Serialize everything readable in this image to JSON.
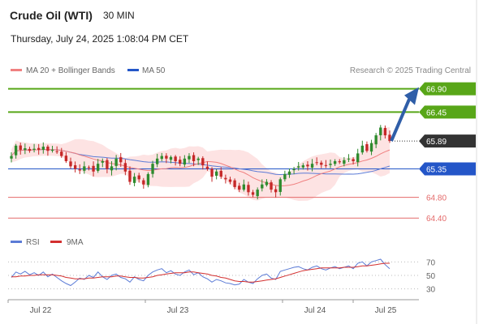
{
  "header": {
    "instrument": "Crude Oil (WTI)",
    "timeframe": "30 MIN",
    "datetime": "Thursday, July 24, 2025 1:08:04 PM CET"
  },
  "legend": {
    "ma20_label": "MA 20 + Bollinger Bands",
    "ma50_label": "MA 50",
    "credit": "Research © 2025 Trading Central"
  },
  "rsi_legend": {
    "rsi_label": "RSI",
    "ma9_label": "9MA"
  },
  "colors": {
    "resistance": "#58a618",
    "support": "#e46a6a",
    "pivot": "#2456c8",
    "last_price": "#333333",
    "candle_up": "#2e8b2e",
    "candle_down": "#c62828",
    "bollinger_fill": "#fde3e3",
    "ma20": "#f08080",
    "ma50": "#5b7bd6",
    "arrow": "#2f5ea8",
    "rsi": "#5b7bd6",
    "rsi_ma": "#d32f2f"
  },
  "chart_data": {
    "type": "candlestick",
    "ylim": [
      64.2,
      67.05
    ],
    "x_ticks": [
      "Jul 22",
      "Jul 23",
      "Jul 24",
      "Jul 25"
    ],
    "levels": [
      {
        "value": 66.9,
        "label": "66.90",
        "kind": "resistance"
      },
      {
        "value": 66.45,
        "label": "66.45",
        "kind": "resistance"
      },
      {
        "value": 65.89,
        "label": "65.89",
        "kind": "last"
      },
      {
        "value": 65.35,
        "label": "65.35",
        "kind": "pivot"
      },
      {
        "value": 64.8,
        "label": "64.80",
        "kind": "support"
      },
      {
        "value": 64.4,
        "label": "64.40",
        "kind": "support"
      }
    ],
    "close": [
      65.6,
      65.8,
      65.72,
      65.75,
      65.7,
      65.74,
      65.72,
      65.78,
      65.7,
      65.72,
      65.68,
      65.6,
      65.5,
      65.4,
      65.35,
      65.32,
      65.4,
      65.38,
      65.3,
      65.45,
      65.5,
      65.35,
      65.4,
      65.55,
      65.48,
      65.3,
      65.1,
      65.2,
      65.15,
      65.05,
      65.25,
      65.45,
      65.55,
      65.6,
      65.55,
      65.58,
      65.5,
      65.45,
      65.55,
      65.6,
      65.5,
      65.55,
      65.42,
      65.35,
      65.2,
      65.3,
      65.2,
      65.15,
      65.1,
      65.0,
      64.95,
      65.05,
      64.9,
      64.85,
      64.95,
      65.05,
      65.1,
      64.95,
      64.9,
      65.15,
      65.25,
      65.3,
      65.35,
      65.4,
      65.42,
      65.4,
      65.45,
      65.47,
      65.43,
      65.42,
      65.45,
      65.5,
      65.48,
      65.52,
      65.55,
      65.5,
      65.65,
      65.8,
      65.7,
      65.85,
      66.0,
      66.15,
      66.0,
      65.89
    ],
    "rsi": {
      "ylim": [
        20,
        80
      ],
      "ticks": [
        70,
        50,
        30
      ],
      "rsi": [
        47,
        55,
        52,
        56,
        51,
        54,
        50,
        55,
        48,
        52,
        47,
        42,
        38,
        35,
        40,
        46,
        44,
        50,
        47,
        55,
        48,
        44,
        50,
        52,
        47,
        45,
        40,
        48,
        44,
        42,
        50,
        55,
        58,
        60,
        54,
        57,
        52,
        50,
        55,
        58,
        51,
        54,
        48,
        45,
        40,
        44,
        42,
        39,
        38,
        36,
        37,
        44,
        40,
        38,
        45,
        50,
        52,
        46,
        44,
        56,
        58,
        60,
        62,
        63,
        60,
        58,
        62,
        64,
        60,
        58,
        61,
        63,
        60,
        62,
        64,
        60,
        68,
        70,
        64,
        70,
        72,
        74,
        66,
        60
      ],
      "ma9": [
        48,
        48,
        49,
        49,
        50,
        50,
        51,
        51,
        51,
        51,
        50,
        49,
        47,
        46,
        45,
        45,
        45,
        46,
        46,
        47,
        48,
        48,
        48,
        49,
        49,
        48,
        47,
        47,
        46,
        46,
        47,
        48,
        50,
        51,
        52,
        53,
        54,
        54,
        54,
        55,
        55,
        54,
        53,
        52,
        50,
        49,
        47,
        46,
        44,
        42,
        41,
        41,
        40,
        40,
        41,
        42,
        43,
        44,
        45,
        47,
        49,
        51,
        53,
        55,
        57,
        58,
        59,
        60,
        61,
        61,
        61,
        61,
        61,
        62,
        62,
        62,
        63,
        64,
        64,
        65,
        66,
        67,
        68,
        68
      ]
    }
  }
}
